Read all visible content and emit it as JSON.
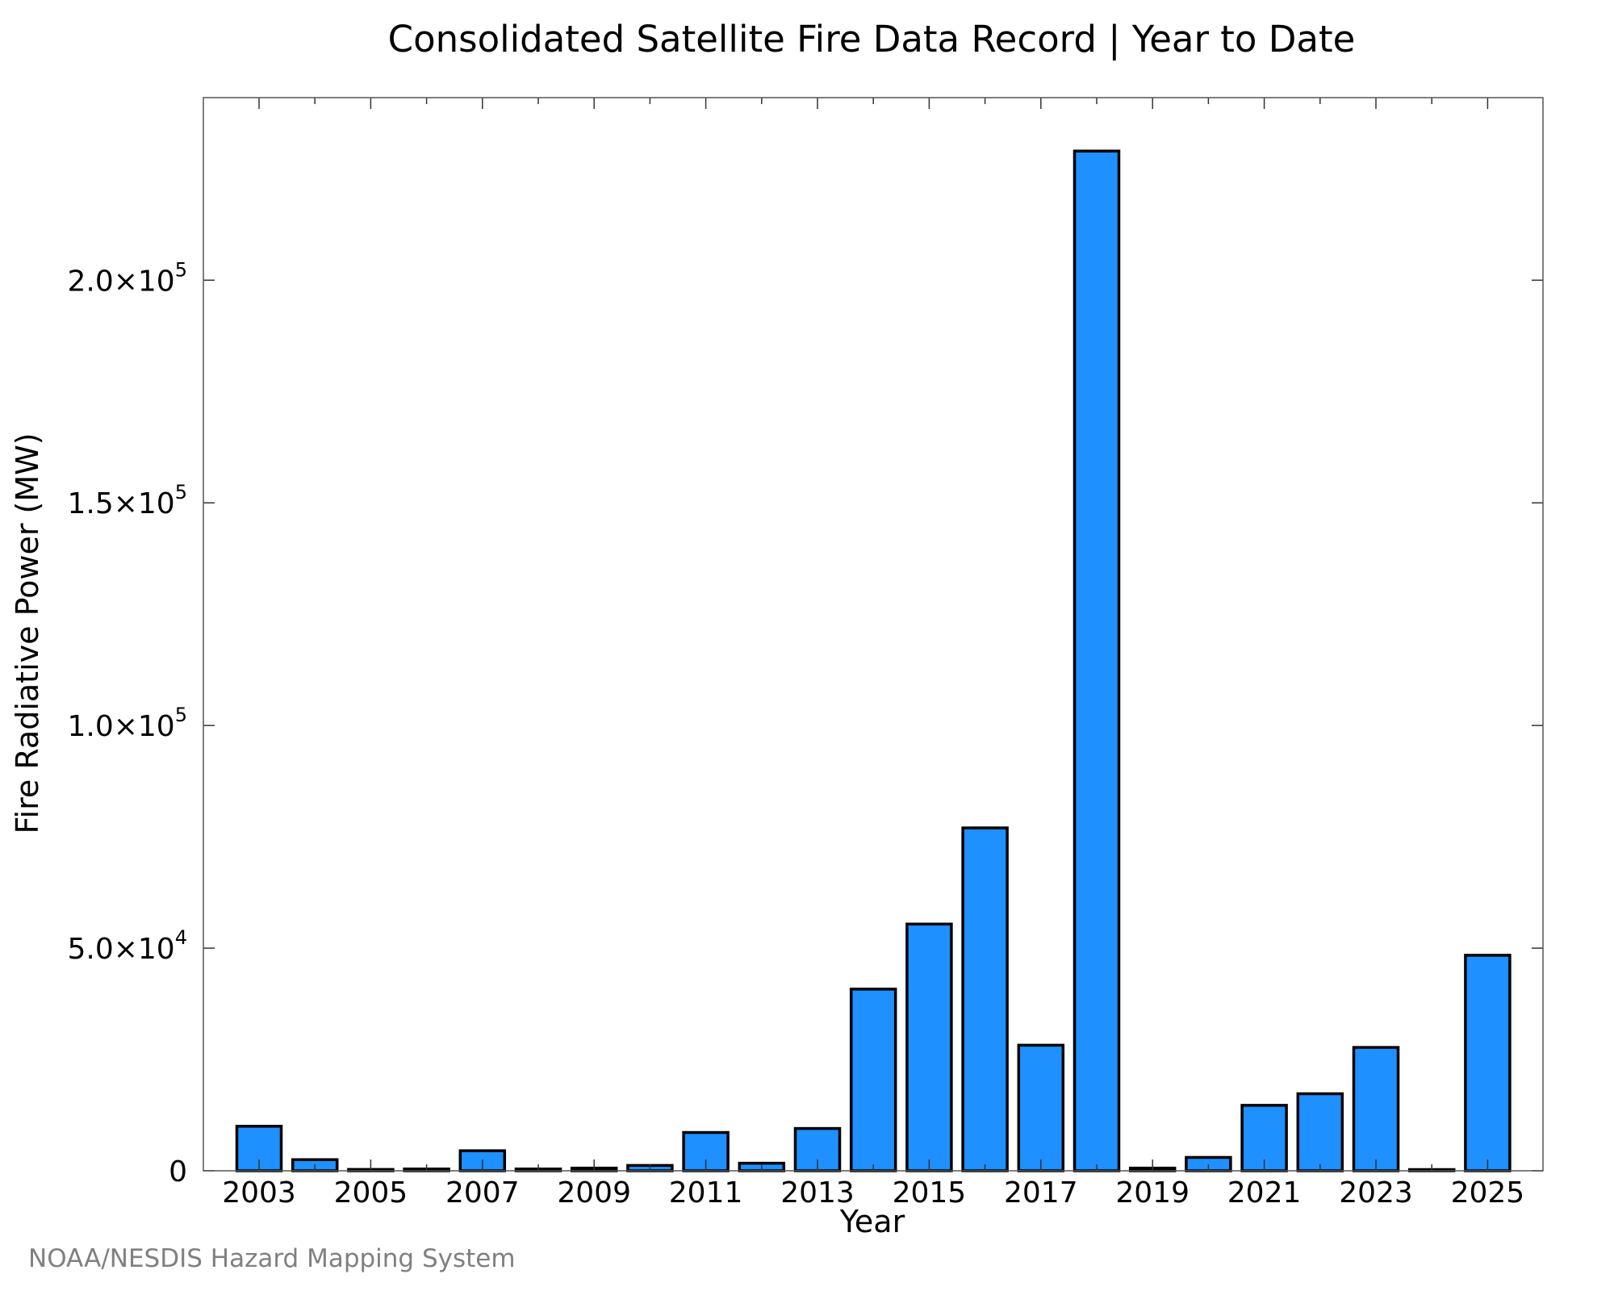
{
  "chart_data": {
    "type": "bar",
    "title": "Consolidated Satellite Fire Data Record | Year to Date",
    "xlabel": "Year",
    "ylabel": "Fire Radiative Power (MW)",
    "categories": [
      "2003",
      "2004",
      "2005",
      "2006",
      "2007",
      "2008",
      "2009",
      "2010",
      "2011",
      "2012",
      "2013",
      "2014",
      "2015",
      "2016",
      "2017",
      "2018",
      "2019",
      "2020",
      "2021",
      "2022",
      "2023",
      "2024",
      "2025"
    ],
    "x_tick_labels": [
      "2003",
      "2005",
      "2007",
      "2009",
      "2011",
      "2013",
      "2015",
      "2017",
      "2019",
      "2021",
      "2023",
      "2025"
    ],
    "values": [
      10000,
      2500,
      300,
      400,
      4500,
      400,
      600,
      1200,
      8600,
      1700,
      9500,
      40800,
      55400,
      77000,
      28200,
      229000,
      600,
      3000,
      14700,
      17300,
      27700,
      200,
      48400
    ],
    "ylim": [
      0,
      241000
    ],
    "y_ticks": [
      {
        "value": 0,
        "mantissa": "0",
        "exponent": ""
      },
      {
        "value": 50000,
        "mantissa": "5.0×10",
        "exponent": "4"
      },
      {
        "value": 100000,
        "mantissa": "1.0×10",
        "exponent": "5"
      },
      {
        "value": 150000,
        "mantissa": "1.5×10",
        "exponent": "5"
      },
      {
        "value": 200000,
        "mantissa": "2.0×10",
        "exponent": "5"
      }
    ],
    "bar_color": "#1e90ff",
    "grid": false,
    "legend": "none"
  },
  "credit": "NOAA/NESDIS Hazard Mapping System"
}
